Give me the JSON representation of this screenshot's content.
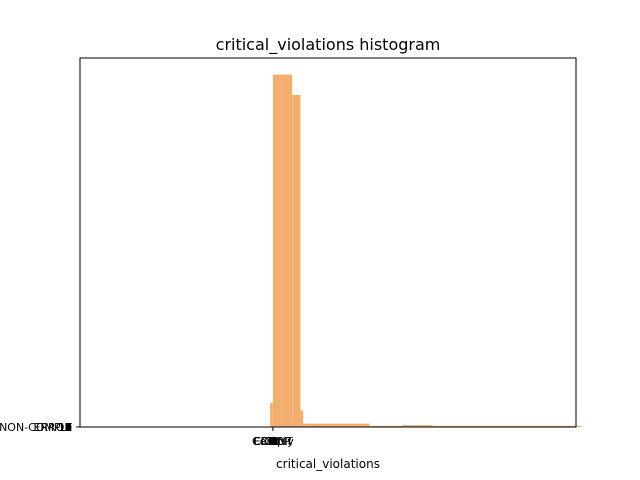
{
  "chart_data": {
    "type": "bar",
    "title": "critical_violations histogram",
    "xlabel": "critical_violations",
    "ylabel": "",
    "bar_color": "#f2ae6e",
    "frame_color": "#000000",
    "grid": false,
    "legend": "none",
    "xlim": [
      -7.0,
      11.0
    ],
    "ylim": [
      0,
      100
    ],
    "x_tick_labels_overlapping": [
      "0",
      "1",
      "2",
      "3",
      "4",
      "5",
      "6",
      "7",
      "8",
      "9",
      "10",
      "11",
      "ERROR",
      "COUNT",
      "Comply"
    ],
    "y_tick_labels_overlapping": [
      "0",
      "1",
      "2",
      "3",
      "4",
      "5",
      "6",
      "7",
      "8",
      "9",
      "10",
      "11",
      "12",
      "ERROR",
      "NON-COMPLY"
    ],
    "bins": [
      {
        "x0": -0.1,
        "x1": 0.0,
        "count": 6.5
      },
      {
        "x0": 0.0,
        "x1": 0.3,
        "count": 95.5
      },
      {
        "x0": 0.3,
        "x1": 0.7,
        "count": 95.5
      },
      {
        "x0": 0.7,
        "x1": 1.0,
        "count": 90.0
      },
      {
        "x0": 1.0,
        "x1": 1.1,
        "count": 4.5
      },
      {
        "x0": 1.1,
        "x1": 1.5,
        "count": 0.9
      },
      {
        "x0": 1.5,
        "x1": 3.5,
        "count": 0.9
      },
      {
        "x0": 3.5,
        "x1": 4.7,
        "count": 0.3
      },
      {
        "x0": 4.7,
        "x1": 5.8,
        "count": 0.5
      },
      {
        "x0": 5.8,
        "x1": 6.9,
        "count": 0.3
      },
      {
        "x0": 6.9,
        "x1": 8.0,
        "count": 0.3
      },
      {
        "x0": 8.0,
        "x1": 9.1,
        "count": 0.3
      },
      {
        "x0": 9.1,
        "x1": 10.2,
        "count": 0.3
      },
      {
        "x0": 10.2,
        "x1": 11.2,
        "count": 0.3
      }
    ]
  }
}
